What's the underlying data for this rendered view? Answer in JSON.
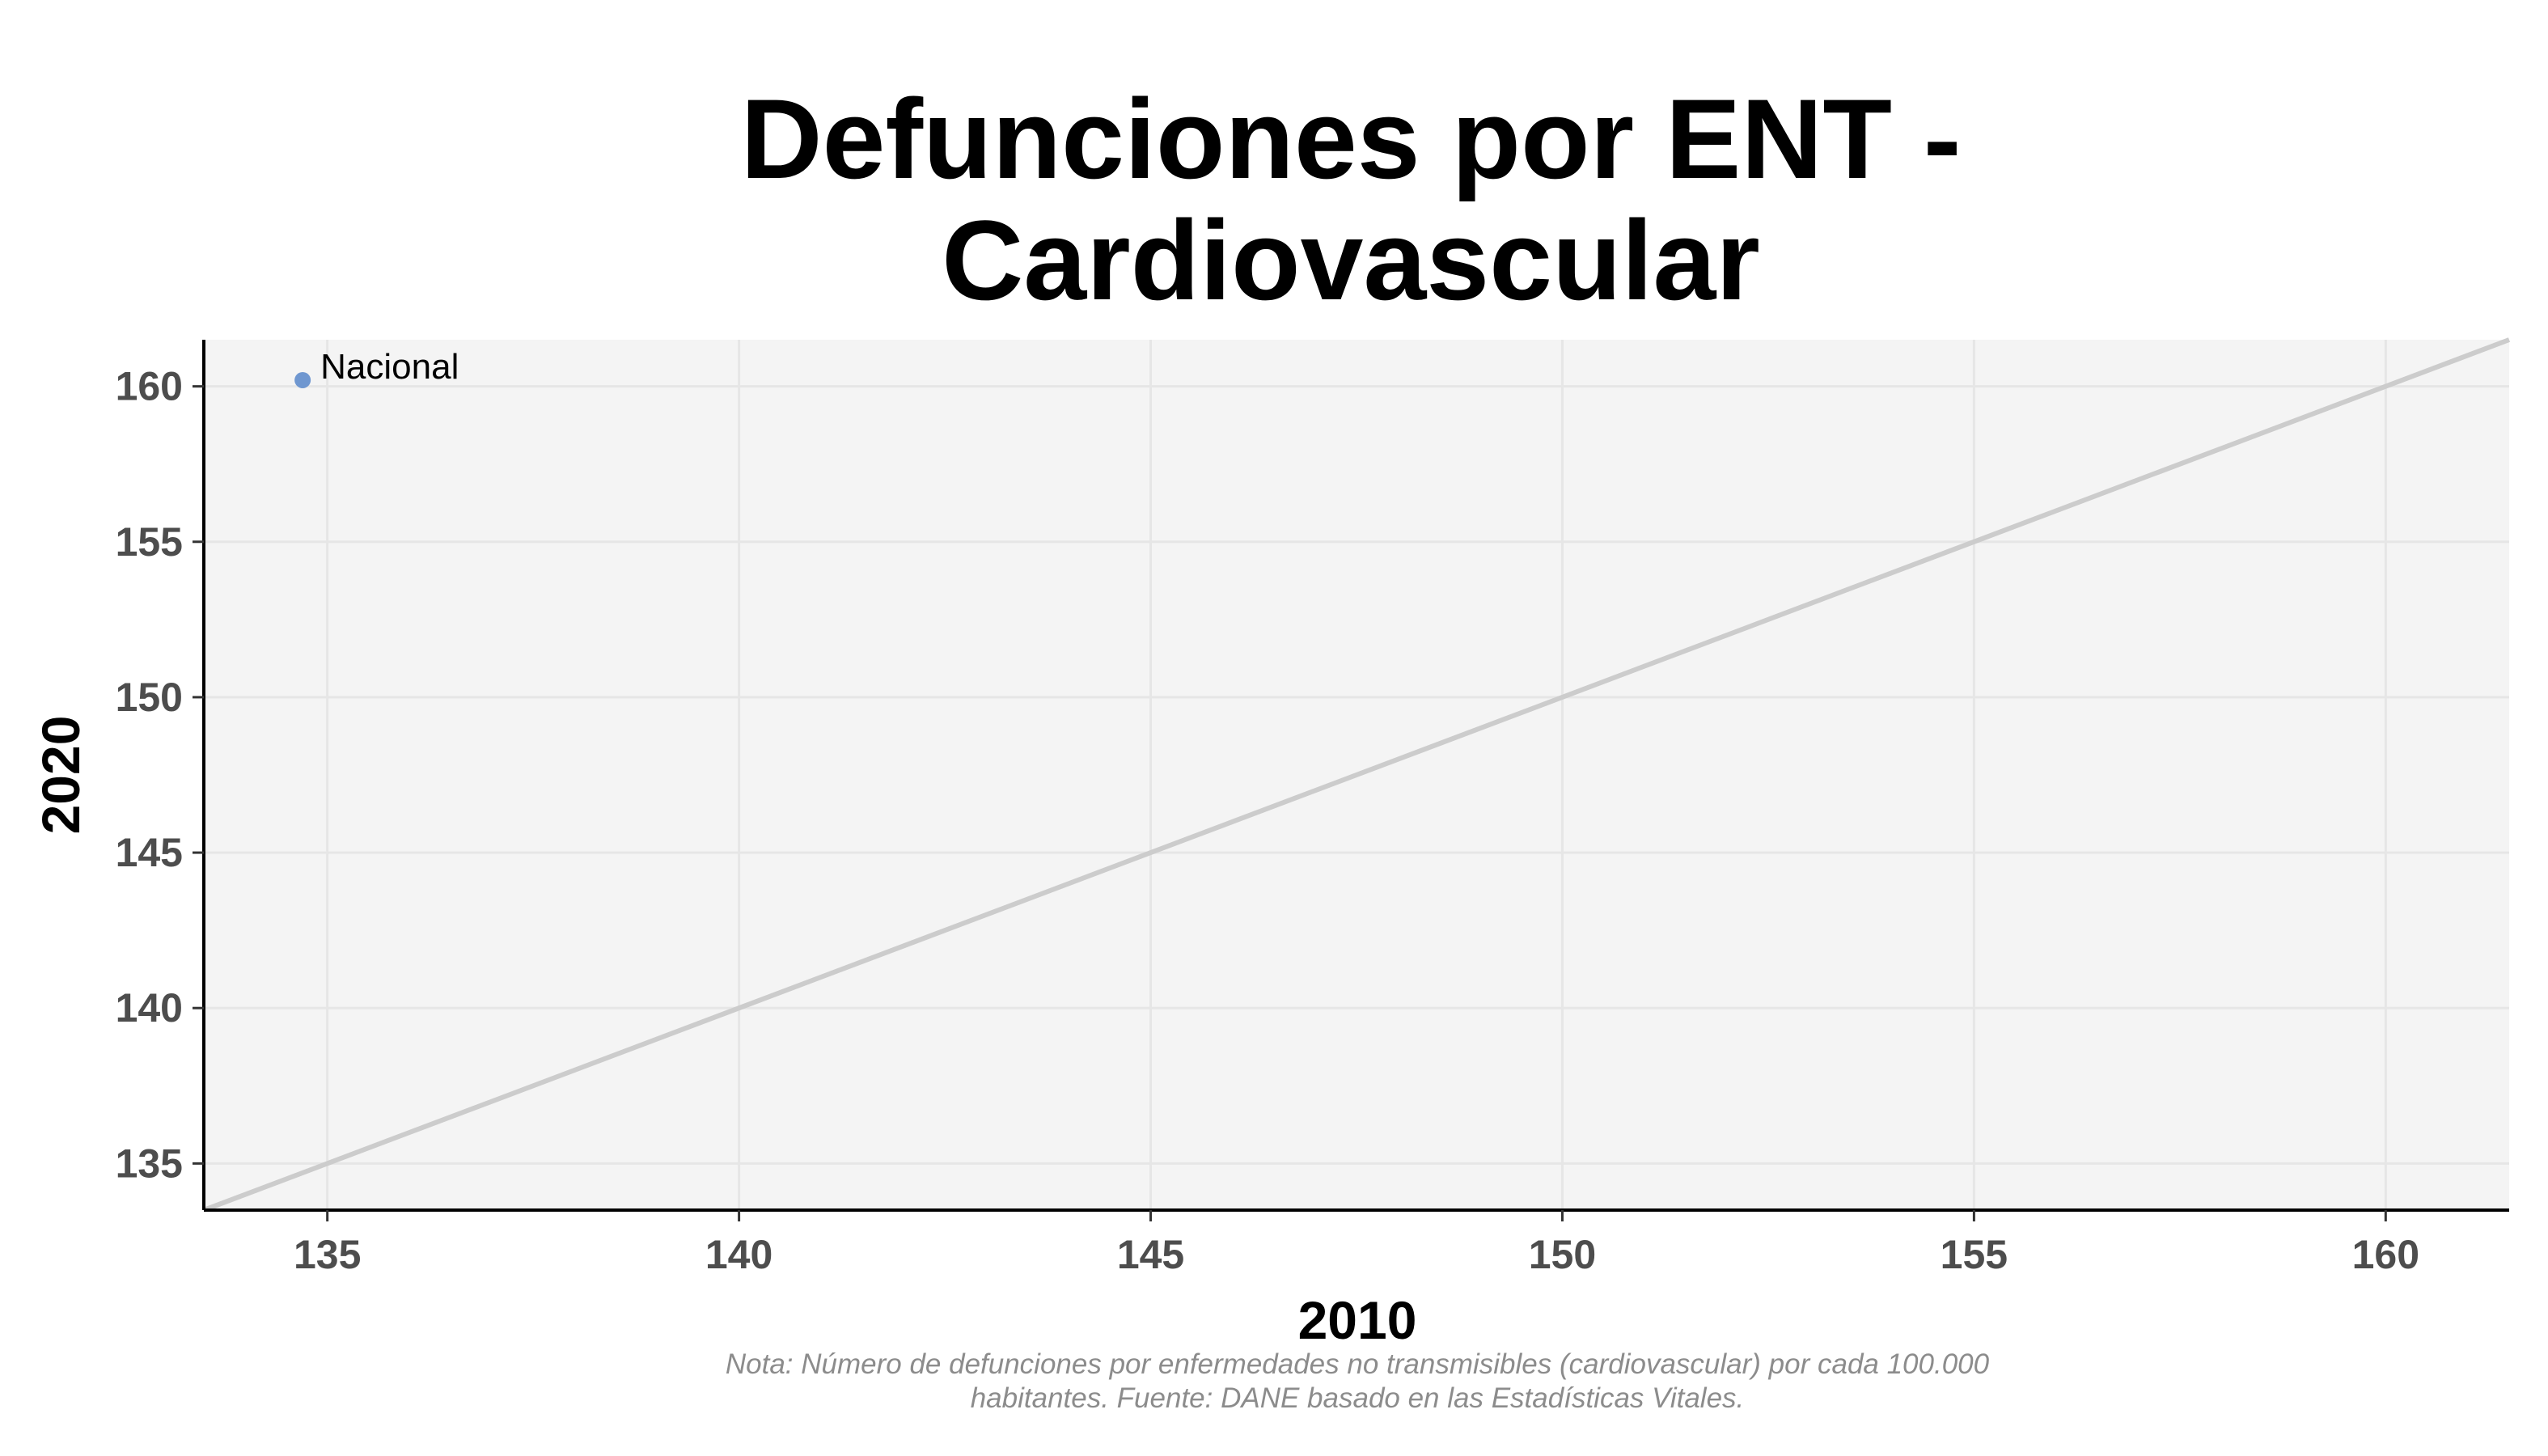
{
  "chart_data": {
    "type": "scatter",
    "title_lines": [
      "Defunciones por ENT -",
      "Cardiovascular"
    ],
    "xlabel": "2010",
    "ylabel": "2020",
    "xlim": [
      133.5,
      161.5
    ],
    "ylim": [
      133.5,
      161.5
    ],
    "x_ticks": [
      135,
      140,
      145,
      150,
      155,
      160
    ],
    "y_ticks": [
      135,
      140,
      145,
      150,
      155,
      160
    ],
    "grid": true,
    "reference_line": "y = x",
    "points": [
      {
        "label": "Nacional",
        "x": 134.7,
        "y": 160.2
      }
    ],
    "caption_lines": [
      "Nota: Número de defunciones por enfermedades no transmisibles (cardiovascular) por cada 100.000",
      "habitantes. Fuente: DANE basado en las Estadísticas Vitales."
    ],
    "colors": {
      "panel_background": "#f4f4f4",
      "grid": "#e6e6e6",
      "reference_line": "#cccccc",
      "point": "#6f97d0",
      "axis": "#000000"
    }
  }
}
